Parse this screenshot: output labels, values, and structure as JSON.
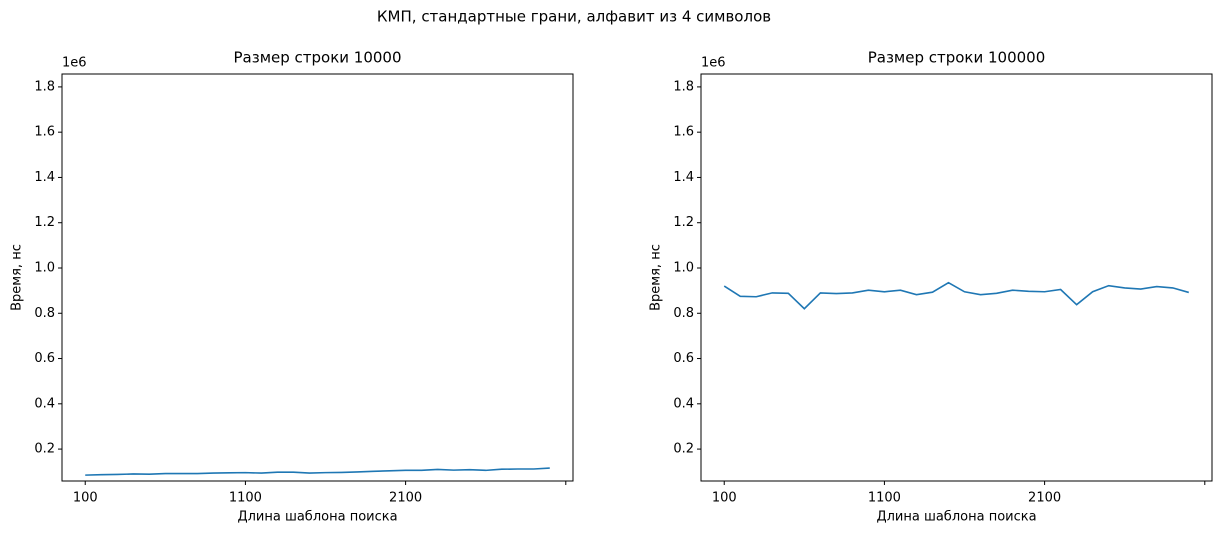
{
  "title": "КМП, стандартные грани, алфавит из 4 символов",
  "chart_data": [
    {
      "type": "line",
      "title": "Размер строки 10000",
      "x_label": "Длина шаблона поиска",
      "y_label": "Время, нс",
      "y_offset_label": "1e6",
      "x": [
        100,
        200,
        300,
        400,
        500,
        600,
        700,
        800,
        900,
        1000,
        1100,
        1200,
        1300,
        1400,
        1500,
        1600,
        1700,
        1800,
        1900,
        2000,
        2100,
        2200,
        2300,
        2400,
        2500,
        2600,
        2700,
        2800,
        2900,
        3000
      ],
      "series": [
        {
          "name": "КМП",
          "color": "#1f77b4",
          "values": [
            0.085,
            0.087,
            0.088,
            0.09,
            0.089,
            0.092,
            0.092,
            0.092,
            0.094,
            0.095,
            0.096,
            0.094,
            0.098,
            0.098,
            0.094,
            0.096,
            0.097,
            0.099,
            0.102,
            0.104,
            0.106,
            0.106,
            0.11,
            0.107,
            0.109,
            0.106,
            0.111,
            0.112,
            0.112,
            0.116
          ]
        }
      ],
      "xlim": [
        -45,
        3145
      ],
      "xticks": [
        100,
        1100,
        2100,
        {
          "value": 3100,
          "label": null
        }
      ],
      "ylim": [
        0.059,
        1.857
      ],
      "yticks": [
        0.2,
        0.4,
        0.6,
        0.8,
        {
          "value": 1,
          "label": "1.0"
        },
        1.2,
        1.4,
        1.6,
        1.8
      ]
    },
    {
      "type": "line",
      "title": "Размер строки 100000",
      "x_label": "Длина шаблона поиска",
      "y_label": "Время, нс",
      "y_offset_label": "1e6",
      "x": [
        100,
        200,
        300,
        400,
        500,
        600,
        700,
        800,
        900,
        1000,
        1100,
        1200,
        1300,
        1400,
        1500,
        1600,
        1700,
        1800,
        1900,
        2000,
        2100,
        2200,
        2300,
        2400,
        2500,
        2600,
        2700,
        2800,
        2900,
        3000
      ],
      "series": [
        {
          "name": "КМП",
          "color": "#1f77b4",
          "values": [
            0.92,
            0.875,
            0.873,
            0.89,
            0.888,
            0.82,
            0.89,
            0.887,
            0.89,
            0.902,
            0.895,
            0.902,
            0.882,
            0.893,
            0.935,
            0.895,
            0.882,
            0.888,
            0.902,
            0.897,
            0.895,
            0.905,
            0.838,
            0.895,
            0.922,
            0.912,
            0.907,
            0.918,
            0.912,
            0.892
          ]
        }
      ],
      "xlim": [
        -45,
        3145
      ],
      "xticks": [
        100,
        1100,
        2100,
        {
          "value": 3100,
          "label": null
        }
      ],
      "ylim": [
        0.059,
        1.857
      ],
      "yticks": [
        0.2,
        0.4,
        0.6,
        0.8,
        {
          "value": 1,
          "label": "1.0"
        },
        1.2,
        1.4,
        1.6,
        1.8
      ]
    }
  ]
}
